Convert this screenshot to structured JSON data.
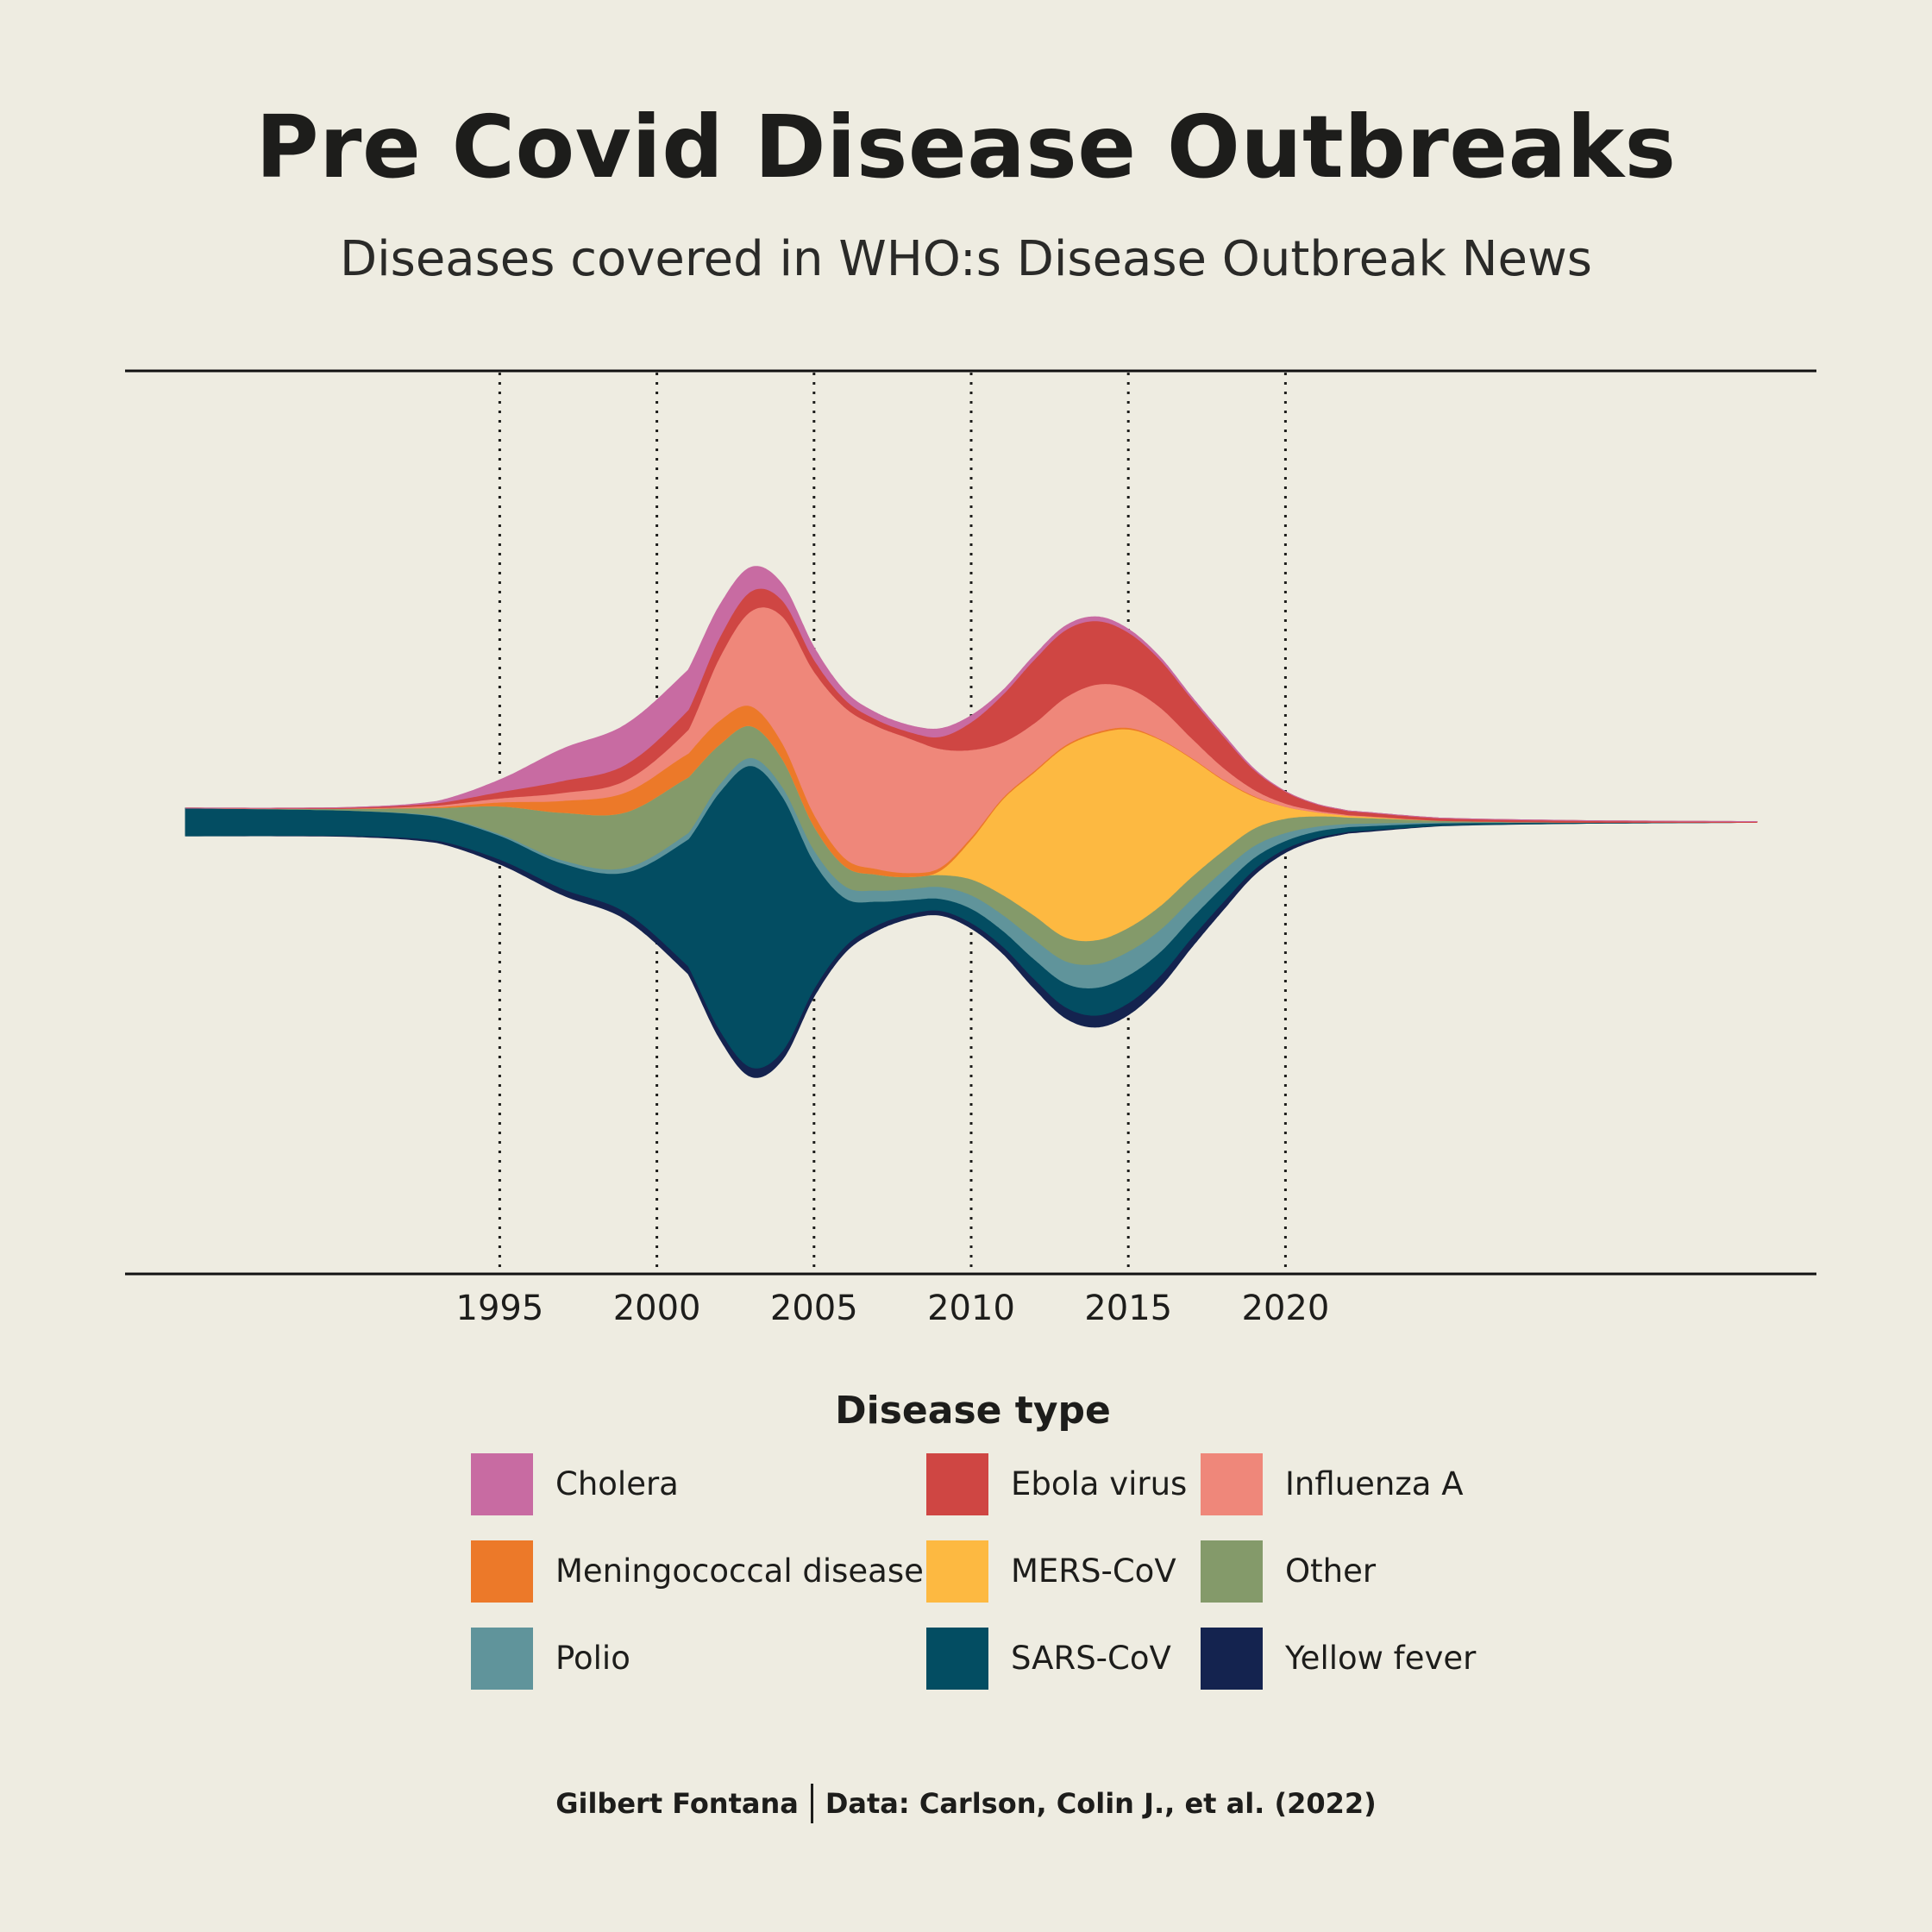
{
  "title": "Pre Covid Disease Outbreaks",
  "subtitle": "Diseases covered in WHO:s Disease Outbreak News",
  "legend_title": "Disease type",
  "caption_author": "Gilbert Fontana",
  "caption_source": "Data: Carlson, Colin J., et al. (2022)",
  "chart_data": {
    "type": "area",
    "subtype": "streamgraph",
    "title": "Pre Covid Disease Outbreaks",
    "subtitle": "Diseases covered in WHO:s Disease Outbreak News",
    "xlabel": "",
    "ylabel": "",
    "x_ticks": [
      1995,
      2000,
      2005,
      2010,
      2015,
      2020
    ],
    "xlim": [
      1985,
      2035
    ],
    "grid": "vertical dotted lines at x ticks",
    "legend_position": "bottom",
    "legend_title": "Disease type",
    "series_order_bottom_to_top": [
      "Yellow fever",
      "SARS-CoV",
      "Polio",
      "Other",
      "MERS-CoV",
      "Meningococcal disease",
      "Influenza A",
      "Ebola virus",
      "Cholera"
    ],
    "x": [
      1985,
      1990,
      1993,
      1995,
      1997,
      1999,
      2001,
      2002,
      2003,
      2004,
      2005,
      2006,
      2007,
      2008,
      2009,
      2010,
      2011,
      2012,
      2013,
      2014,
      2015,
      2016,
      2017,
      2018,
      2019,
      2020,
      2021,
      2022,
      2025,
      2030,
      2035
    ],
    "series": [
      {
        "name": "Yellow fever",
        "color": "#14234f",
        "values": [
          0,
          0.1,
          0.3,
          0.6,
          0.8,
          0.9,
          1.0,
          1.1,
          1.2,
          1.1,
          1.0,
          0.8,
          0.7,
          0.6,
          0.6,
          0.7,
          0.9,
          1.2,
          1.4,
          1.5,
          1.5,
          1.4,
          1.2,
          1.0,
          0.7,
          0.5,
          0.3,
          0.2,
          0.05,
          0,
          0
        ]
      },
      {
        "name": "SARS-CoV",
        "color": "#034d62",
        "values": [
          3.5,
          3.2,
          3.0,
          3.0,
          3.2,
          5.0,
          16.0,
          30.0,
          38.0,
          32.0,
          16.0,
          6.0,
          3.0,
          1.8,
          1.5,
          1.8,
          2.0,
          2.5,
          3.0,
          3.5,
          3.5,
          3.0,
          2.5,
          2.0,
          1.5,
          1.0,
          0.8,
          0.6,
          0.3,
          0.1,
          0
        ]
      },
      {
        "name": "Polio",
        "color": "#60949b",
        "values": [
          0,
          0,
          0.1,
          0.2,
          0.4,
          0.6,
          0.8,
          1.0,
          1.0,
          1.2,
          1.5,
          1.5,
          1.4,
          1.4,
          1.5,
          1.7,
          2.0,
          2.5,
          2.8,
          3.0,
          3.0,
          2.8,
          2.4,
          2.0,
          1.5,
          1.0,
          0.6,
          0.4,
          0.1,
          0,
          0
        ]
      },
      {
        "name": "Other",
        "color": "#849a6a",
        "values": [
          0,
          0.2,
          1.0,
          3.5,
          6.0,
          7.0,
          7.0,
          5.0,
          4.0,
          3.5,
          3.0,
          2.5,
          2.0,
          1.5,
          1.5,
          2.0,
          2.5,
          3.0,
          3.0,
          3.0,
          3.0,
          3.0,
          2.8,
          2.5,
          2.2,
          1.8,
          1.3,
          0.8,
          0.2,
          0,
          0
        ]
      },
      {
        "name": "MERS-CoV",
        "color": "#fdb941",
        "values": [
          0,
          0,
          0,
          0,
          0,
          0,
          0,
          0,
          0,
          0,
          0,
          0,
          0,
          0,
          0.5,
          5.0,
          12.0,
          18.0,
          24.0,
          26.0,
          25.0,
          21.0,
          15.0,
          9.0,
          4.0,
          1.5,
          0.5,
          0.2,
          0,
          0,
          0
        ]
      },
      {
        "name": "Meningococcal disease",
        "color": "#ec7929",
        "values": [
          0,
          0,
          0.1,
          0.5,
          1.5,
          2.5,
          3.0,
          3.0,
          2.5,
          2.0,
          1.5,
          1.0,
          0.7,
          0.5,
          0.4,
          0.3,
          0.2,
          0.2,
          0.2,
          0.2,
          0.2,
          0.1,
          0.1,
          0.1,
          0.1,
          0,
          0,
          0,
          0,
          0,
          0
        ]
      },
      {
        "name": "Influenza A",
        "color": "#ef877a",
        "values": [
          0,
          0,
          0.2,
          0.5,
          1.0,
          1.5,
          3.0,
          8.0,
          12.0,
          16.0,
          18.0,
          19.0,
          18.0,
          17.0,
          15.0,
          11.0,
          7.0,
          6.0,
          6.0,
          6.0,
          5.0,
          4.0,
          2.5,
          1.5,
          0.8,
          0.4,
          0.2,
          0.1,
          0,
          0,
          0
        ]
      },
      {
        "name": "Ebola virus",
        "color": "#cf4643",
        "values": [
          0,
          0.1,
          0.3,
          0.8,
          1.5,
          2.0,
          2.5,
          2.5,
          2.5,
          2.0,
          1.5,
          1.0,
          0.8,
          0.8,
          1.5,
          3.5,
          6.0,
          8.0,
          8.5,
          8.0,
          7.0,
          6.0,
          5.0,
          4.0,
          2.5,
          1.5,
          0.8,
          0.5,
          0.3,
          0.2,
          0.1
        ]
      },
      {
        "name": "Cholera",
        "color": "#c86ba2",
        "values": [
          0,
          0,
          0.2,
          1.5,
          4.0,
          5.0,
          5.0,
          4.0,
          3.0,
          2.0,
          1.5,
          1.0,
          0.8,
          0.8,
          1.0,
          0.8,
          0.5,
          0.5,
          0.5,
          0.5,
          0.4,
          0.3,
          0.2,
          0.2,
          0.1,
          0,
          0,
          0,
          0,
          0,
          0
        ]
      }
    ]
  }
}
